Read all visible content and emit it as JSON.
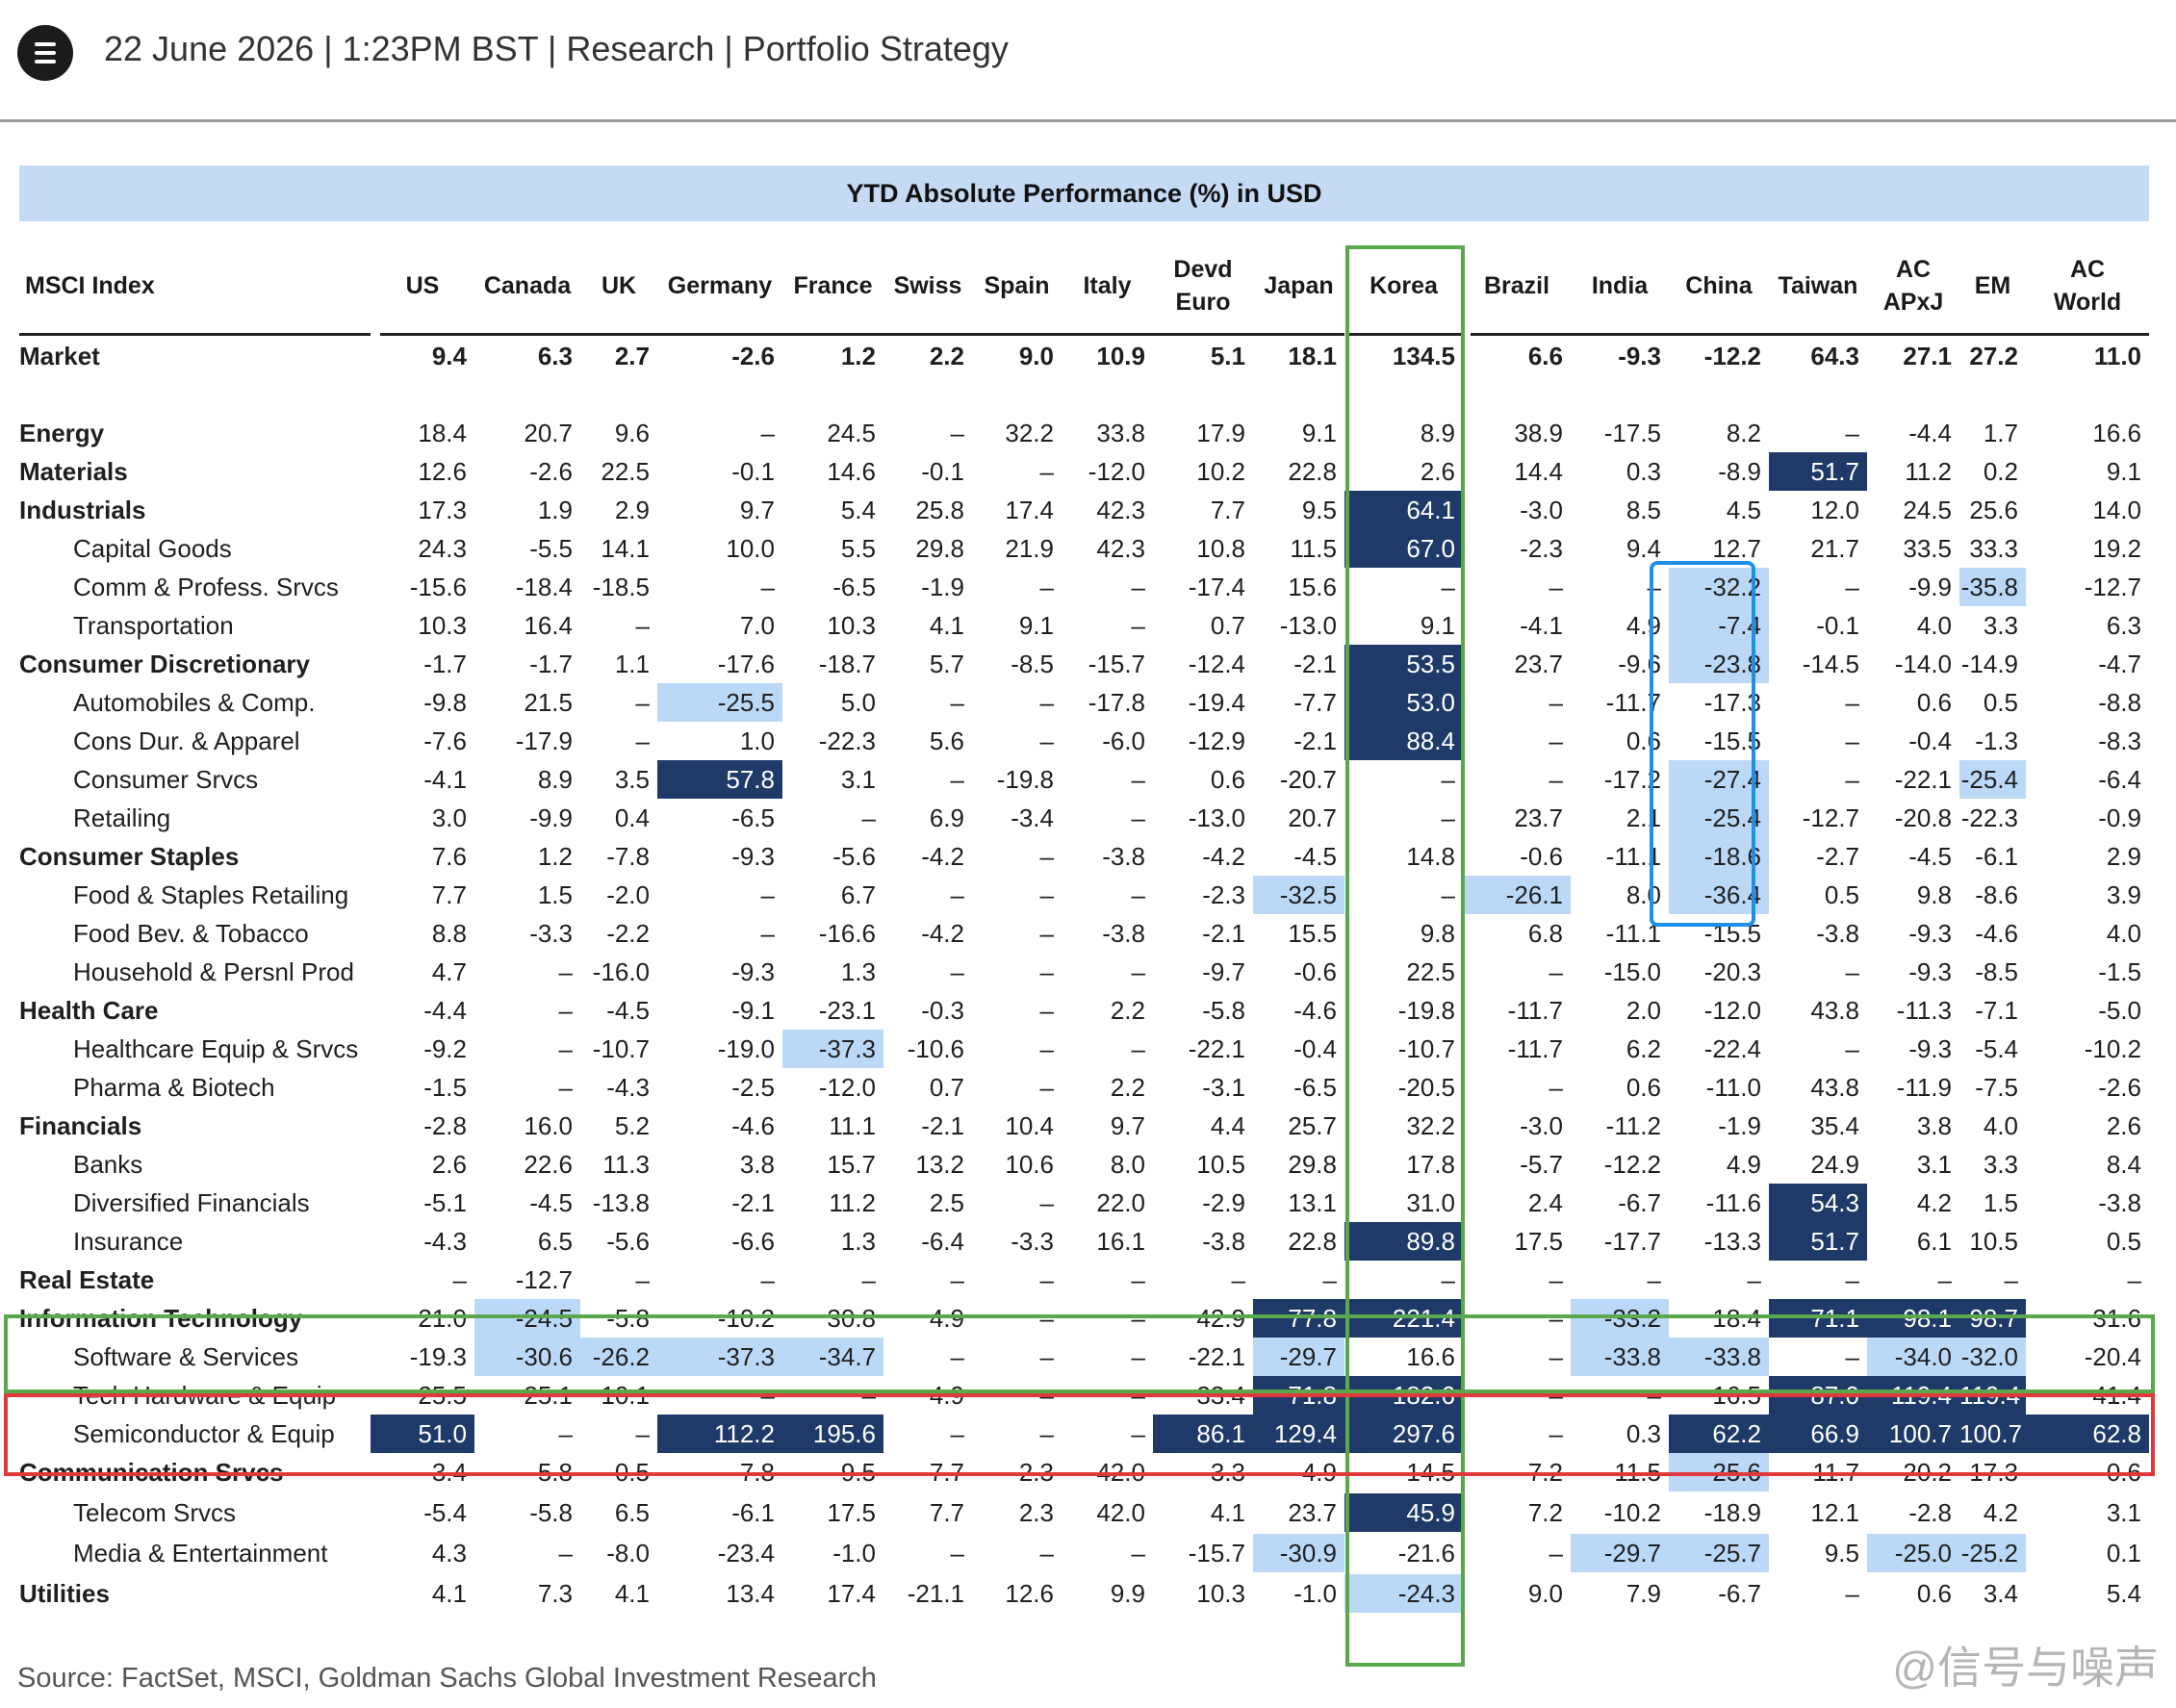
{
  "header": {
    "dateline": "22 June 2026 | 1:23PM BST | Research | Portfolio Strategy"
  },
  "table": {
    "title": "YTD Absolute Performance (%) in USD",
    "index_label": "MSCI Index",
    "columns": [
      "US",
      "Canada",
      "UK",
      "Germany",
      "France",
      "Swiss",
      "Spain",
      "Italy",
      "Devd\nEuro",
      "Japan",
      "Korea",
      "Brazil",
      "India",
      "China",
      "Taiwan",
      "AC\nAPxJ",
      "EM",
      "AC\nWorld"
    ],
    "rows": [
      {
        "label": "Market",
        "bold": true,
        "indent": 0,
        "values": [
          "9.4",
          "6.3",
          "2.7",
          "-2.6",
          "1.2",
          "2.2",
          "9.0",
          "10.9",
          "5.1",
          "18.1",
          "134.5",
          "6.6",
          "-9.3",
          "-12.2",
          "64.3",
          "27.1",
          "27.2",
          "11.0"
        ],
        "hl": {}
      },
      {
        "label": "Energy",
        "bold": true,
        "indent": 0,
        "values": [
          "18.4",
          "20.7",
          "9.6",
          "–",
          "24.5",
          "–",
          "32.2",
          "33.8",
          "17.9",
          "9.1",
          "8.9",
          "38.9",
          "-17.5",
          "8.2",
          "–",
          "-4.4",
          "1.7",
          "16.6"
        ],
        "hl": {}
      },
      {
        "label": "Materials",
        "bold": true,
        "indent": 0,
        "values": [
          "12.6",
          "-2.6",
          "22.5",
          "-0.1",
          "14.6",
          "-0.1",
          "–",
          "-12.0",
          "10.2",
          "22.8",
          "2.6",
          "14.4",
          "0.3",
          "-8.9",
          "51.7",
          "11.2",
          "0.2",
          "9.1"
        ],
        "hl": {
          "14": "dark"
        }
      },
      {
        "label": "Industrials",
        "bold": true,
        "indent": 0,
        "values": [
          "17.3",
          "1.9",
          "2.9",
          "9.7",
          "5.4",
          "25.8",
          "17.4",
          "42.3",
          "7.7",
          "9.5",
          "64.1",
          "-3.0",
          "8.5",
          "4.5",
          "12.0",
          "24.5",
          "25.6",
          "14.0"
        ],
        "hl": {
          "10": "dark"
        }
      },
      {
        "label": "Capital Goods",
        "bold": false,
        "indent": 1,
        "values": [
          "24.3",
          "-5.5",
          "14.1",
          "10.0",
          "5.5",
          "29.8",
          "21.9",
          "42.3",
          "10.8",
          "11.5",
          "67.0",
          "-2.3",
          "9.4",
          "12.7",
          "21.7",
          "33.5",
          "33.3",
          "19.2"
        ],
        "hl": {
          "10": "dark"
        }
      },
      {
        "label": "Comm & Profess. Srvcs",
        "bold": false,
        "indent": 1,
        "values": [
          "-15.6",
          "-18.4",
          "-18.5",
          "–",
          "-6.5",
          "-1.9",
          "–",
          "–",
          "-17.4",
          "15.6",
          "–",
          "–",
          "–",
          "-32.2",
          "–",
          "-9.9",
          "-35.8",
          "-12.7"
        ],
        "hl": {
          "13": "light",
          "16": "light"
        }
      },
      {
        "label": "Transportation",
        "bold": false,
        "indent": 1,
        "values": [
          "10.3",
          "16.4",
          "–",
          "7.0",
          "10.3",
          "4.1",
          "9.1",
          "–",
          "0.7",
          "-13.0",
          "9.1",
          "-4.1",
          "4.9",
          "-7.4",
          "-0.1",
          "4.0",
          "3.3",
          "6.3"
        ],
        "hl": {
          "13": "light"
        }
      },
      {
        "label": "Consumer Discretionary",
        "bold": true,
        "indent": 0,
        "values": [
          "-1.7",
          "-1.7",
          "1.1",
          "-17.6",
          "-18.7",
          "5.7",
          "-8.5",
          "-15.7",
          "-12.4",
          "-2.1",
          "53.5",
          "23.7",
          "-9.6",
          "-23.8",
          "-14.5",
          "-14.0",
          "-14.9",
          "-4.7"
        ],
        "hl": {
          "10": "dark",
          "13": "light"
        }
      },
      {
        "label": "Automobiles & Comp.",
        "bold": false,
        "indent": 1,
        "values": [
          "-9.8",
          "21.5",
          "–",
          "-25.5",
          "5.0",
          "–",
          "–",
          "-17.8",
          "-19.4",
          "-7.7",
          "53.0",
          "–",
          "-11.7",
          "-17.3",
          "–",
          "0.6",
          "0.5",
          "-8.8"
        ],
        "hl": {
          "3": "light",
          "10": "dark"
        }
      },
      {
        "label": "Cons Dur. & Apparel",
        "bold": false,
        "indent": 1,
        "values": [
          "-7.6",
          "-17.9",
          "–",
          "1.0",
          "-22.3",
          "5.6",
          "–",
          "-6.0",
          "-12.9",
          "-2.1",
          "88.4",
          "–",
          "0.6",
          "-15.5",
          "–",
          "-0.4",
          "-1.3",
          "-8.3"
        ],
        "hl": {
          "10": "dark"
        }
      },
      {
        "label": "Consumer Srvcs",
        "bold": false,
        "indent": 1,
        "values": [
          "-4.1",
          "8.9",
          "3.5",
          "57.8",
          "3.1",
          "–",
          "-19.8",
          "–",
          "0.6",
          "-20.7",
          "–",
          "–",
          "-17.2",
          "-27.4",
          "–",
          "-22.1",
          "-25.4",
          "-6.4"
        ],
        "hl": {
          "3": "dark",
          "13": "light",
          "16": "light"
        }
      },
      {
        "label": "Retailing",
        "bold": false,
        "indent": 1,
        "values": [
          "3.0",
          "-9.9",
          "0.4",
          "-6.5",
          "–",
          "6.9",
          "-3.4",
          "–",
          "-13.0",
          "20.7",
          "–",
          "23.7",
          "2.1",
          "-25.4",
          "-12.7",
          "-20.8",
          "-22.3",
          "-0.9"
        ],
        "hl": {
          "13": "light"
        }
      },
      {
        "label": "Consumer Staples",
        "bold": true,
        "indent": 0,
        "values": [
          "7.6",
          "1.2",
          "-7.8",
          "-9.3",
          "-5.6",
          "-4.2",
          "–",
          "-3.8",
          "-4.2",
          "-4.5",
          "14.8",
          "-0.6",
          "-11.1",
          "-18.6",
          "-2.7",
          "-4.5",
          "-6.1",
          "2.9"
        ],
        "hl": {
          "13": "light"
        }
      },
      {
        "label": "Food & Staples Retailing",
        "bold": false,
        "indent": 1,
        "values": [
          "7.7",
          "1.5",
          "-2.0",
          "–",
          "6.7",
          "–",
          "–",
          "–",
          "-2.3",
          "-32.5",
          "–",
          "-26.1",
          "8.0",
          "-36.4",
          "0.5",
          "9.8",
          "-8.6",
          "3.9"
        ],
        "hl": {
          "9": "light",
          "11": "light",
          "13": "light"
        }
      },
      {
        "label": "Food Bev. & Tobacco",
        "bold": false,
        "indent": 1,
        "values": [
          "8.8",
          "-3.3",
          "-2.2",
          "–",
          "-16.6",
          "-4.2",
          "–",
          "-3.8",
          "-2.1",
          "15.5",
          "9.8",
          "6.8",
          "-11.1",
          "-15.5",
          "-3.8",
          "-9.3",
          "-4.6",
          "4.0"
        ],
        "hl": {}
      },
      {
        "label": "Household & Persnl Prod",
        "bold": false,
        "indent": 1,
        "values": [
          "4.7",
          "–",
          "-16.0",
          "-9.3",
          "1.3",
          "–",
          "–",
          "–",
          "-9.7",
          "-0.6",
          "22.5",
          "–",
          "-15.0",
          "-20.3",
          "–",
          "-9.3",
          "-8.5",
          "-1.5"
        ],
        "hl": {}
      },
      {
        "label": "Health Care",
        "bold": true,
        "indent": 0,
        "values": [
          "-4.4",
          "–",
          "-4.5",
          "-9.1",
          "-23.1",
          "-0.3",
          "–",
          "2.2",
          "-5.8",
          "-4.6",
          "-19.8",
          "-11.7",
          "2.0",
          "-12.0",
          "43.8",
          "-11.3",
          "-7.1",
          "-5.0"
        ],
        "hl": {}
      },
      {
        "label": "Healthcare Equip & Srvcs",
        "bold": false,
        "indent": 1,
        "values": [
          "-9.2",
          "–",
          "-10.7",
          "-19.0",
          "-37.3",
          "-10.6",
          "–",
          "–",
          "-22.1",
          "-0.4",
          "-10.7",
          "-11.7",
          "6.2",
          "-22.4",
          "–",
          "-9.3",
          "-5.4",
          "-10.2"
        ],
        "hl": {
          "4": "light"
        }
      },
      {
        "label": "Pharma & Biotech",
        "bold": false,
        "indent": 1,
        "values": [
          "-1.5",
          "–",
          "-4.3",
          "-2.5",
          "-12.0",
          "0.7",
          "–",
          "2.2",
          "-3.1",
          "-6.5",
          "-20.5",
          "–",
          "0.6",
          "-11.0",
          "43.8",
          "-11.9",
          "-7.5",
          "-2.6"
        ],
        "hl": {}
      },
      {
        "label": "Financials",
        "bold": true,
        "indent": 0,
        "values": [
          "-2.8",
          "16.0",
          "5.2",
          "-4.6",
          "11.1",
          "-2.1",
          "10.4",
          "9.7",
          "4.4",
          "25.7",
          "32.2",
          "-3.0",
          "-11.2",
          "-1.9",
          "35.4",
          "3.8",
          "4.0",
          "2.6"
        ],
        "hl": {}
      },
      {
        "label": "Banks",
        "bold": false,
        "indent": 1,
        "values": [
          "2.6",
          "22.6",
          "11.3",
          "3.8",
          "15.7",
          "13.2",
          "10.6",
          "8.0",
          "10.5",
          "29.8",
          "17.8",
          "-5.7",
          "-12.2",
          "4.9",
          "24.9",
          "3.1",
          "3.3",
          "8.4"
        ],
        "hl": {}
      },
      {
        "label": "Diversified Financials",
        "bold": false,
        "indent": 1,
        "values": [
          "-5.1",
          "-4.5",
          "-13.8",
          "-2.1",
          "11.2",
          "2.5",
          "–",
          "22.0",
          "-2.9",
          "13.1",
          "31.0",
          "2.4",
          "-6.7",
          "-11.6",
          "54.3",
          "4.2",
          "1.5",
          "-3.8"
        ],
        "hl": {
          "14": "dark"
        }
      },
      {
        "label": "Insurance",
        "bold": false,
        "indent": 1,
        "values": [
          "-4.3",
          "6.5",
          "-5.6",
          "-6.6",
          "1.3",
          "-6.4",
          "-3.3",
          "16.1",
          "-3.8",
          "22.8",
          "89.8",
          "17.5",
          "-17.7",
          "-13.3",
          "51.7",
          "6.1",
          "10.5",
          "0.5"
        ],
        "hl": {
          "10": "dark",
          "14": "dark"
        }
      },
      {
        "label": "Real Estate",
        "bold": true,
        "indent": 0,
        "values": [
          "–",
          "-12.7",
          "–",
          "–",
          "–",
          "–",
          "–",
          "–",
          "–",
          "–",
          "–",
          "–",
          "–",
          "–",
          "–",
          "–",
          "–",
          "–"
        ],
        "hl": {}
      },
      {
        "label": "Information Technology",
        "bold": true,
        "indent": 0,
        "values": [
          "21.0",
          "-24.5",
          "-5.8",
          "-10.2",
          "30.8",
          "4.9",
          "–",
          "–",
          "42.9",
          "77.8",
          "221.4",
          "–",
          "-33.2",
          "18.4",
          "71.1",
          "98.1",
          "98.7",
          "31.6"
        ],
        "hl": {
          "1": "light",
          "9": "dark",
          "10": "dark",
          "12": "light",
          "14": "dark",
          "15": "dark",
          "16": "dark"
        }
      },
      {
        "label": "Software & Services",
        "bold": false,
        "indent": 1,
        "values": [
          "-19.3",
          "-30.6",
          "-26.2",
          "-37.3",
          "-34.7",
          "–",
          "–",
          "–",
          "-22.1",
          "-29.7",
          "16.6",
          "–",
          "-33.8",
          "-33.8",
          "–",
          "-34.0",
          "-32.0",
          "-20.4"
        ],
        "hl": {
          "1": "light",
          "2": "light",
          "3": "light",
          "4": "light",
          "9": "light",
          "12": "light",
          "13": "light",
          "15": "light",
          "16": "light"
        }
      },
      {
        "label": "Tech Hardware & Equip",
        "bold": false,
        "indent": 1,
        "values": [
          "25.5",
          "25.1",
          "10.1",
          "–",
          "–",
          "4.9",
          "–",
          "–",
          "33.4",
          "71.8",
          "182.6",
          "–",
          "–",
          "16.5",
          "87.0",
          "119.4",
          "119.4",
          "41.4"
        ],
        "hl": {
          "9": "dark",
          "10": "dark",
          "14": "dark",
          "15": "dark",
          "16": "dark"
        }
      },
      {
        "label": "Semiconductor & Equip",
        "bold": false,
        "indent": 1,
        "values": [
          "51.0",
          "–",
          "–",
          "112.2",
          "195.6",
          "–",
          "–",
          "–",
          "86.1",
          "129.4",
          "297.6",
          "–",
          "0.3",
          "62.2",
          "66.9",
          "100.7",
          "100.7",
          "62.8"
        ],
        "hl": {
          "0": "dark",
          "3": "dark",
          "4": "dark",
          "8": "dark",
          "9": "dark",
          "10": "dark",
          "13": "dark",
          "14": "dark",
          "15": "dark",
          "16": "dark",
          "17": "dark"
        }
      },
      {
        "label": "Communication Srvcs",
        "bold": true,
        "indent": 0,
        "values": [
          "3.4",
          "-5.8",
          "0.5",
          "-7.8",
          "9.5",
          "7.7",
          "2.3",
          "42.0",
          "-3.3",
          "4.9",
          "-14.5",
          "7.2",
          "-11.5",
          "-25.6",
          "11.7",
          "-20.2",
          "-17.3",
          "0.6"
        ],
        "hl": {
          "13": "light"
        }
      },
      {
        "label": "Telecom Srvcs",
        "bold": false,
        "indent": 1,
        "values": [
          "-5.4",
          "-5.8",
          "6.5",
          "-6.1",
          "17.5",
          "7.7",
          "2.3",
          "42.0",
          "4.1",
          "23.7",
          "45.9",
          "7.2",
          "-10.2",
          "-18.9",
          "12.1",
          "-2.8",
          "4.2",
          "3.1"
        ],
        "hl": {
          "10": "dark"
        }
      },
      {
        "label": "Media & Entertainment",
        "bold": false,
        "indent": 1,
        "values": [
          "4.3",
          "–",
          "-8.0",
          "-23.4",
          "-1.0",
          "–",
          "–",
          "–",
          "-15.7",
          "-30.9",
          "-21.6",
          "–",
          "-29.7",
          "-25.7",
          "9.5",
          "-25.0",
          "-25.2",
          "0.1"
        ],
        "hl": {
          "9": "light",
          "12": "light",
          "13": "light",
          "15": "light",
          "16": "light"
        }
      },
      {
        "label": "Utilities",
        "bold": true,
        "indent": 0,
        "values": [
          "4.1",
          "7.3",
          "4.1",
          "13.4",
          "17.4",
          "-21.1",
          "12.6",
          "9.9",
          "10.3",
          "-1.0",
          "-24.3",
          "9.0",
          "7.9",
          "-6.7",
          "–",
          "0.6",
          "3.4",
          "5.4"
        ],
        "hl": {
          "10": "light"
        }
      }
    ]
  },
  "footer": {
    "source": "Source: FactSet, MSCI, Goldman Sachs Global Investment Research",
    "watermark": "@信号与噪声"
  },
  "colors": {
    "banner": "#c5dbf3",
    "highlight_dark": "#1f3a68",
    "highlight_light": "#bcd8f7",
    "green_box": "#5aa84c",
    "red_box": "#e0393c",
    "blue_box": "#1e90e8"
  },
  "icons": {
    "menu": "menu-icon"
  }
}
